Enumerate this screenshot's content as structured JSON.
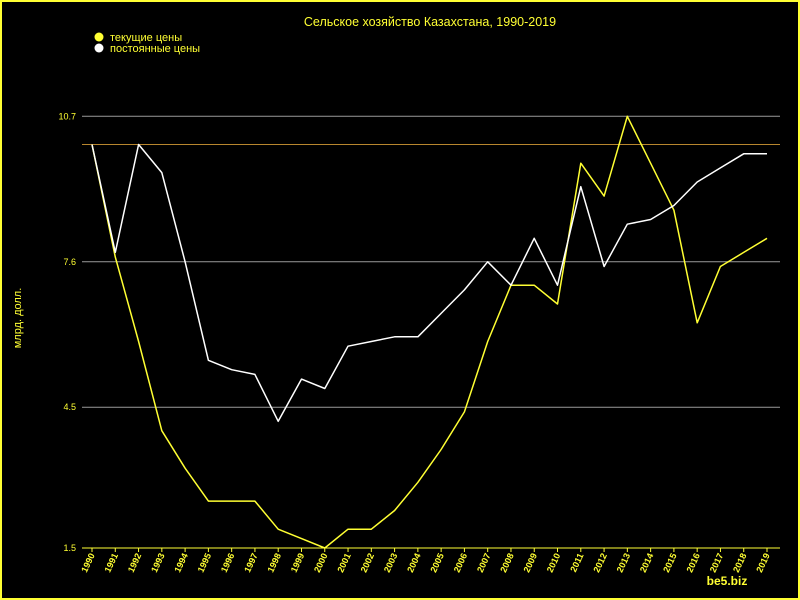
{
  "chart_data": {
    "type": "line",
    "title": "Сельское хозяйство Казахстана, 1990-2019",
    "ylabel": "млрд. долл.",
    "xlabel": "",
    "ylim": [
      1.5,
      11.9
    ],
    "yticks": [
      "1.5",
      "4.5",
      "7.6",
      "10.7"
    ],
    "ytick_values": [
      1.5,
      4.5,
      7.6,
      10.7
    ],
    "reference_line": 10.1,
    "grid": true,
    "legend_position": "top-left",
    "watermark": "be5.biz",
    "x": [
      "1990",
      "1991",
      "1992",
      "1993",
      "1994",
      "1995",
      "1996",
      "1997",
      "1998",
      "1999",
      "2000",
      "2001",
      "2002",
      "2003",
      "2004",
      "2005",
      "2006",
      "2007",
      "2008",
      "2009",
      "2010",
      "2011",
      "2012",
      "2013",
      "2014",
      "2015",
      "2016",
      "2017",
      "2018",
      "2019"
    ],
    "series": [
      {
        "name": "текущие цены",
        "color": "#ffff33",
        "values": [
          10.1,
          7.7,
          5.9,
          4.0,
          3.2,
          2.5,
          2.5,
          2.5,
          1.9,
          1.7,
          1.5,
          1.9,
          1.9,
          2.3,
          2.9,
          3.6,
          4.4,
          5.9,
          7.1,
          7.1,
          6.7,
          9.7,
          9.0,
          10.7,
          9.7,
          8.7,
          6.3,
          7.5,
          7.8,
          8.1
        ]
      },
      {
        "name": "постоянные цены",
        "color": "#ffffff",
        "values": [
          10.1,
          7.8,
          10.1,
          9.5,
          7.6,
          5.5,
          5.3,
          5.2,
          4.2,
          5.1,
          4.9,
          5.8,
          5.9,
          6.0,
          6.0,
          6.5,
          7.0,
          7.6,
          7.1,
          8.1,
          7.1,
          9.2,
          7.5,
          8.4,
          8.5,
          8.8,
          9.3,
          9.6,
          9.9,
          9.9
        ]
      }
    ]
  }
}
